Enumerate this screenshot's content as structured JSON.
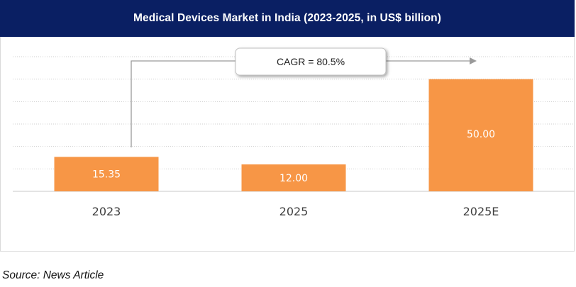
{
  "chart_data": {
    "type": "bar",
    "title": "Medical Devices Market in India (2023-2025, in US$ billion)",
    "categories": [
      "2023",
      "2025",
      "2025E"
    ],
    "values": [
      15.35,
      12.0,
      50.0
    ],
    "value_labels": [
      "15.35",
      "12.00",
      "50.00"
    ],
    "xlabel": "",
    "ylabel": "",
    "ylim": [
      0,
      60
    ],
    "grid": true,
    "legend": "none",
    "annotation": "CAGR = 80.5%",
    "colors": {
      "bar": "#f79646",
      "title_bg": "#0a1f63",
      "grid": "#cfcfcf",
      "arrow": "#9a9a9a"
    }
  },
  "footer": {
    "source": "Source: News Article"
  }
}
